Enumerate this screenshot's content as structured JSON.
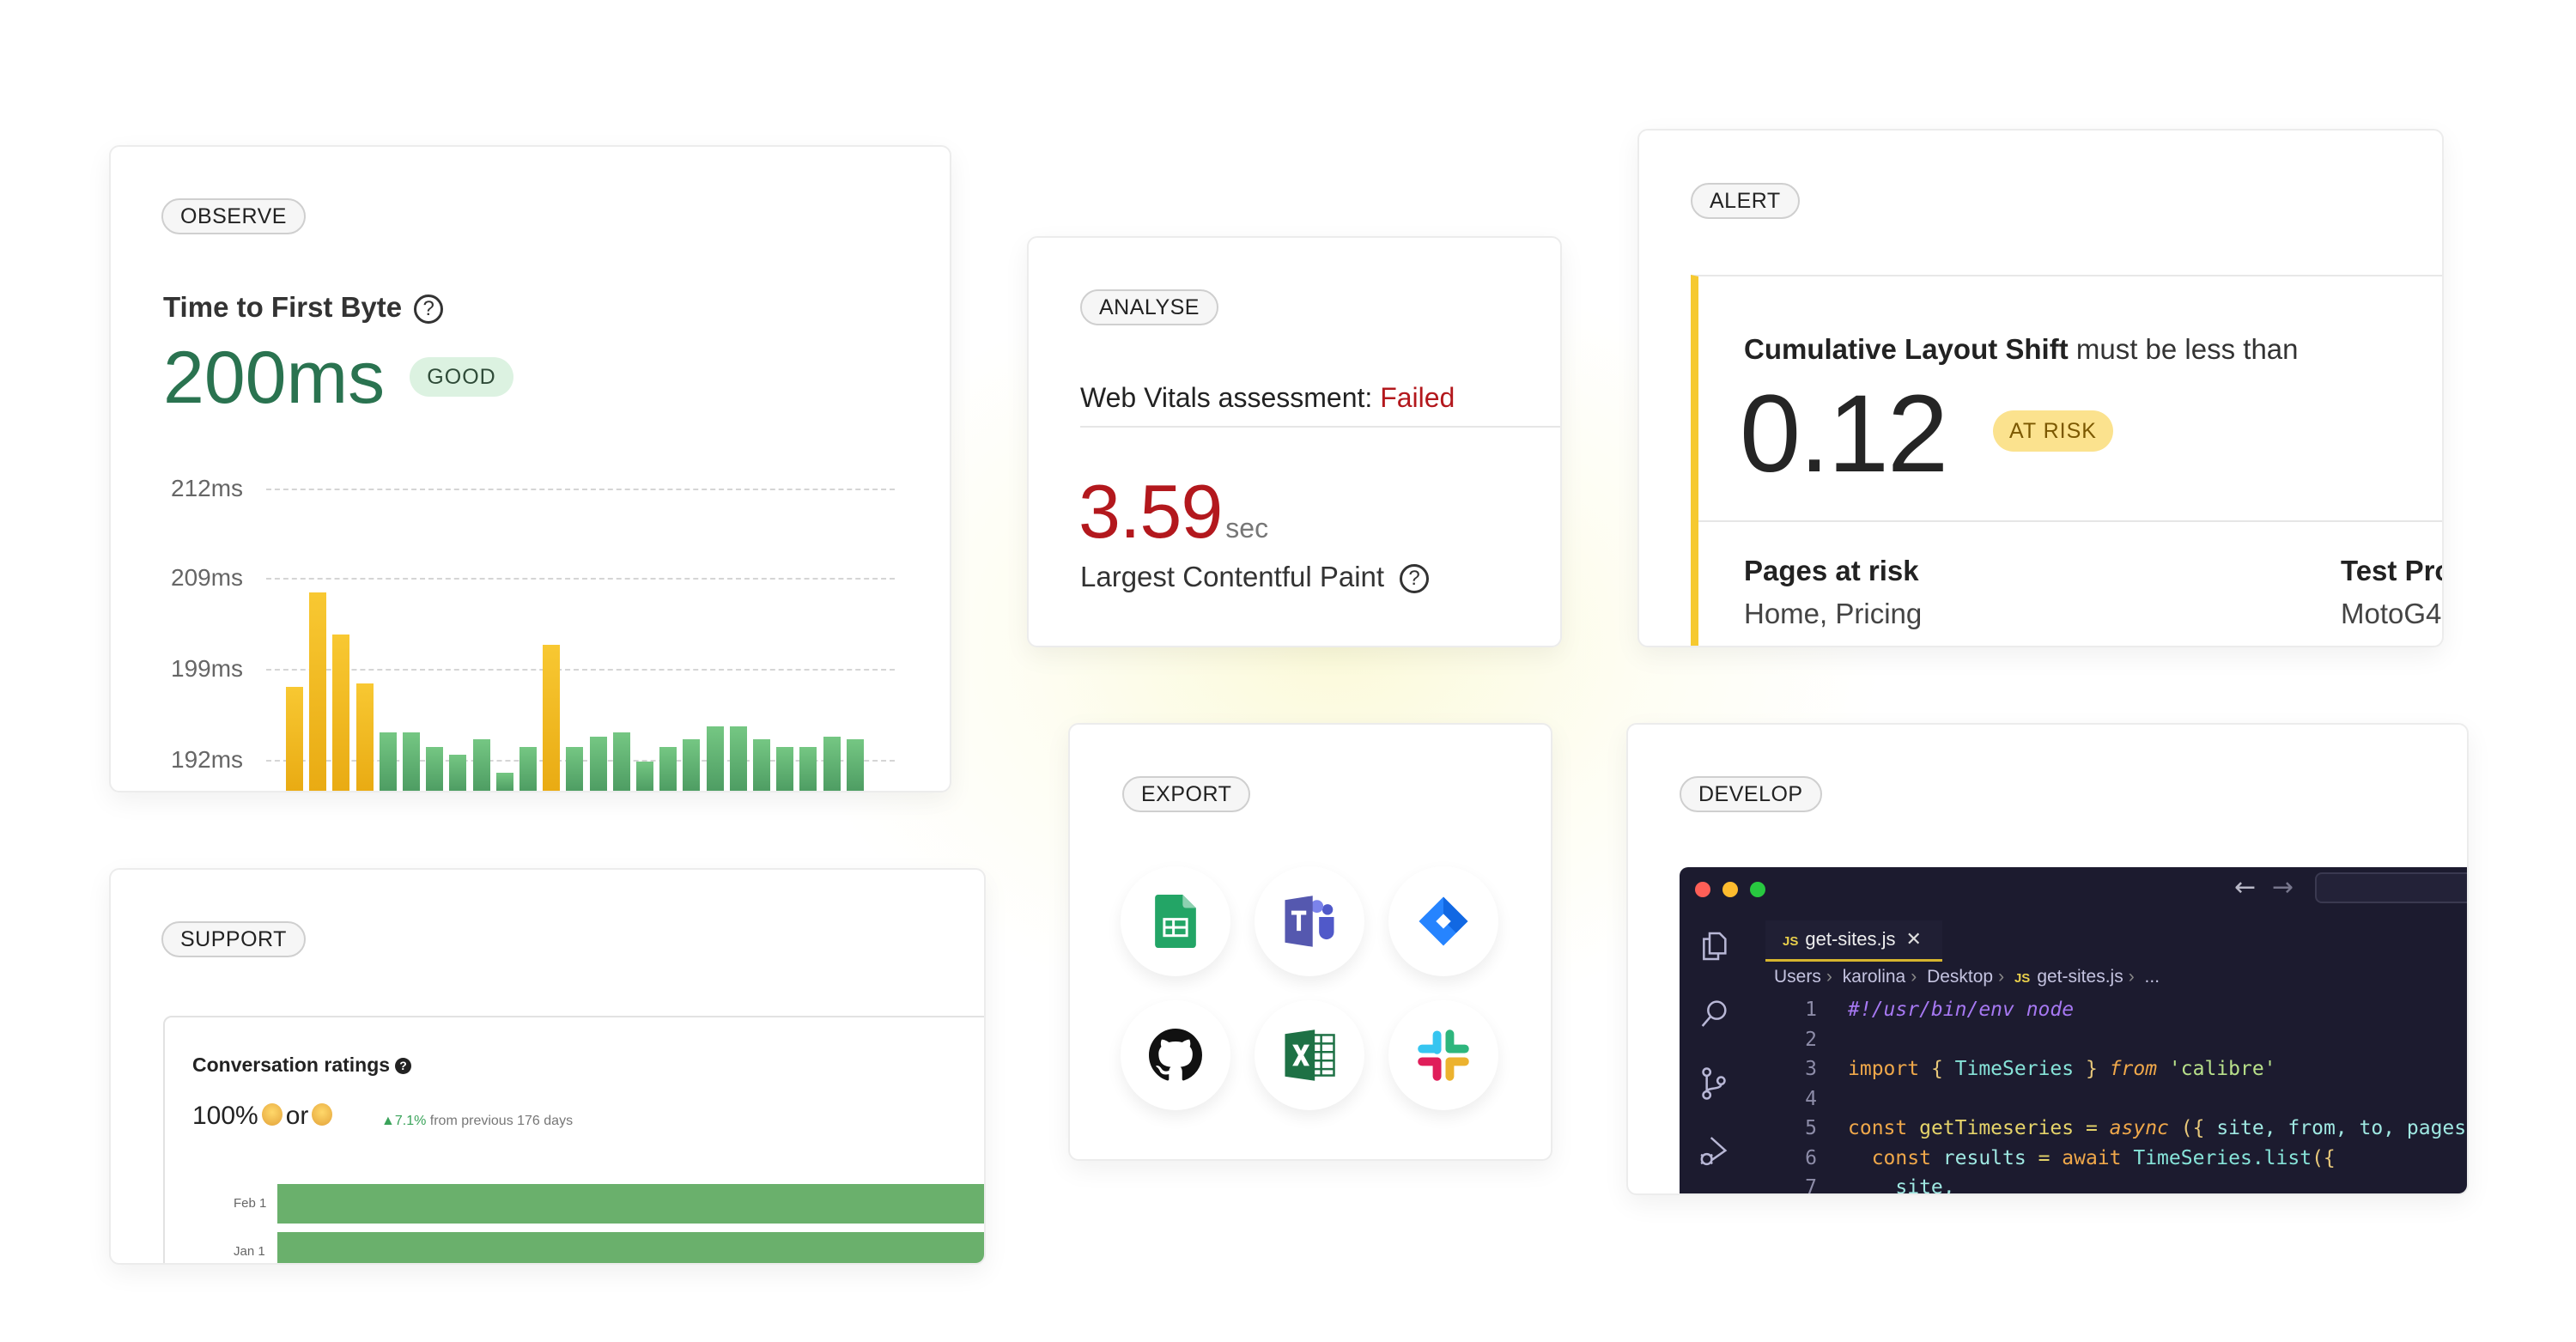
{
  "colors": {
    "good_green": "#2a7350",
    "warning_yellow": "#f6c930",
    "failed_red": "#b3181d",
    "bar_green": "#6ab06c",
    "editor_bg": "#1c1b2f"
  },
  "observe": {
    "pill": "OBSERVE",
    "title": "Time to First Byte",
    "help_icon": "question-circle-icon",
    "value": "200ms",
    "badge": "GOOD",
    "chart_data": {
      "type": "bar",
      "y_ticks": [
        "212ms",
        "209ms",
        "199ms",
        "192ms"
      ],
      "y_tick_values": [
        212,
        209,
        199,
        192
      ],
      "grid": true,
      "unit": "ms",
      "values": [
        197.6,
        207.4,
        202.8,
        197.9,
        194.1,
        194.1,
        193.0,
        192.4,
        193.6,
        191.0,
        193.0,
        201.6,
        193.0,
        193.8,
        194.1,
        191.9,
        193.0,
        193.6,
        194.6,
        194.6,
        193.6,
        193.0,
        193.0,
        193.8,
        193.6
      ],
      "status": [
        "warn",
        "warn",
        "warn",
        "warn",
        "good",
        "good",
        "good",
        "good",
        "good",
        "good",
        "good",
        "warn",
        "good",
        "good",
        "good",
        "good",
        "good",
        "good",
        "good",
        "good",
        "good",
        "good",
        "good",
        "good",
        "good"
      ]
    }
  },
  "support": {
    "pill": "SUPPORT",
    "title": "Conversation ratings",
    "help": "?",
    "value": "100%",
    "or": "or",
    "delta": "7.1%",
    "delta_suffix": "from previous 176 days",
    "chart_data": {
      "type": "bar",
      "orientation": "horizontal",
      "categories": [
        "Feb 1",
        "Jan 1"
      ],
      "values": [
        100,
        100
      ]
    }
  },
  "analyse": {
    "pill": "ANALYSE",
    "assessment_label": "Web Vitals assessment:",
    "assessment_status": "Failed",
    "value": "3.59",
    "unit": "sec",
    "metric": "Largest Contentful Paint",
    "help_icon": "question-circle-icon"
  },
  "export": {
    "pill": "EXPORT",
    "integrations": [
      "google-sheets-icon",
      "microsoft-teams-icon",
      "jira-icon",
      "github-icon",
      "microsoft-excel-icon",
      "slack-icon"
    ]
  },
  "alert": {
    "pill": "ALERT",
    "metric": "Cumulative Layout Shift",
    "condition": "must be less than",
    "value": "0.12",
    "badge": "AT RISK",
    "pages_label": "Pages at risk",
    "pages_value": "Home, Pricing",
    "profiles_label": "Test Pro",
    "profiles_value": "MotoG4,"
  },
  "develop": {
    "pill": "DEVELOP",
    "tab": {
      "badge": "JS",
      "name": "get-sites.js",
      "close": "✕"
    },
    "breadcrumb": [
      "Users",
      "karolina",
      "Desktop",
      "get-sites.js",
      "..."
    ],
    "code": [
      {
        "n": "1",
        "tokens": [
          {
            "t": "#!/usr/bin/env node",
            "k": "cmt"
          }
        ]
      },
      {
        "n": "2",
        "tokens": []
      },
      {
        "n": "3",
        "tokens": [
          {
            "t": "import",
            "k": "kw"
          },
          {
            "t": " { ",
            "k": "punc"
          },
          {
            "t": "TimeSeries",
            "k": "type"
          },
          {
            "t": " } ",
            "k": "punc"
          },
          {
            "t": "from",
            "k": "kwi"
          },
          {
            "t": " 'calibre'",
            "k": "str"
          }
        ]
      },
      {
        "n": "4",
        "tokens": []
      },
      {
        "n": "5",
        "tokens": [
          {
            "t": "const",
            "k": "kw"
          },
          {
            "t": " getTimeseries",
            "k": "fn"
          },
          {
            "t": " = ",
            "k": "op"
          },
          {
            "t": "async",
            "k": "kwi"
          },
          {
            "t": " ({",
            "k": "punc"
          },
          {
            "t": " site, from, to, pages,",
            "k": "var"
          }
        ]
      },
      {
        "n": "6",
        "tokens": [
          {
            "t": "  const",
            "k": "kw"
          },
          {
            "t": " results",
            "k": "var"
          },
          {
            "t": " = ",
            "k": "op"
          },
          {
            "t": "await",
            "k": "kw"
          },
          {
            "t": " TimeSeries.list",
            "k": "type"
          },
          {
            "t": "({",
            "k": "punc"
          }
        ]
      },
      {
        "n": "7",
        "tokens": [
          {
            "t": "    site,",
            "k": "var"
          }
        ]
      }
    ]
  }
}
